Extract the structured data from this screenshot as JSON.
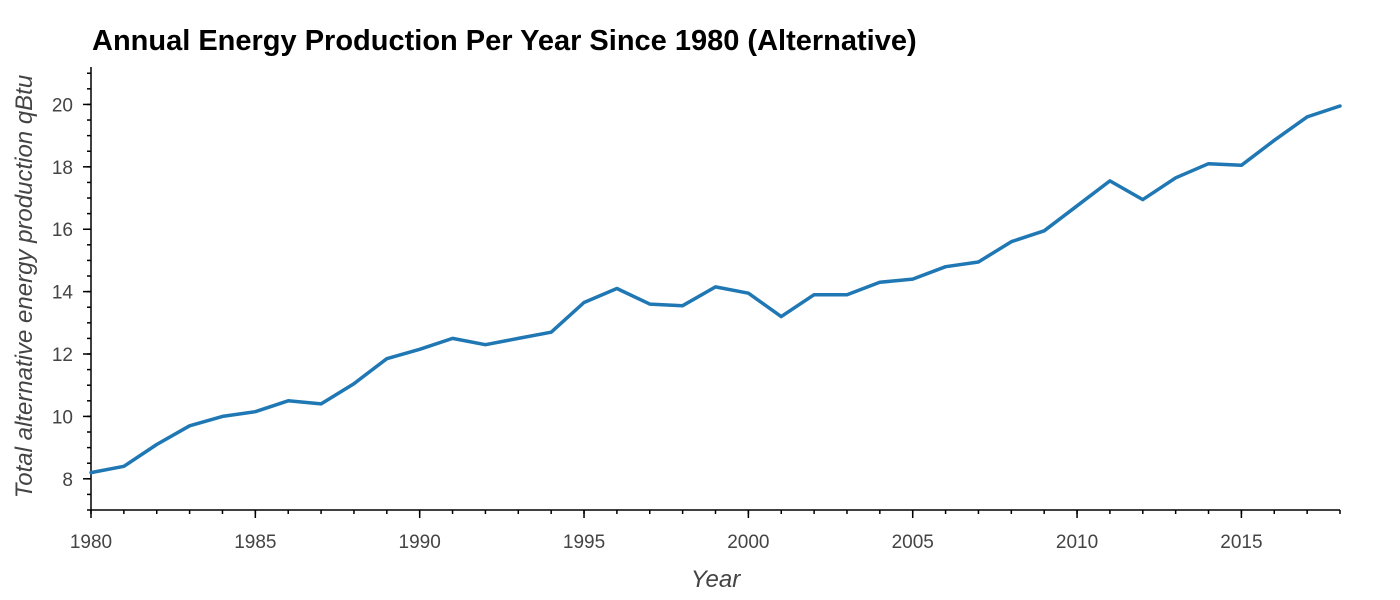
{
  "chart_data": {
    "type": "line",
    "title": "Annual Energy Production Per Year Since 1980 (Alternative)",
    "xlabel": "Year",
    "ylabel": "Total alternative energy production qBtu",
    "xlim": [
      1980,
      2018
    ],
    "ylim": [
      7,
      21.2
    ],
    "x_ticks": [
      1980,
      1985,
      1990,
      1995,
      2000,
      2005,
      2010,
      2015
    ],
    "y_ticks": [
      8,
      10,
      12,
      14,
      16,
      18,
      20
    ],
    "grid": false,
    "legend": "none",
    "series": [
      {
        "color": "#1f77b4",
        "x": [
          1980,
          1981,
          1982,
          1983,
          1984,
          1985,
          1986,
          1987,
          1988,
          1989,
          1990,
          1991,
          1992,
          1993,
          1994,
          1995,
          1996,
          1997,
          1998,
          1999,
          2000,
          2001,
          2002,
          2003,
          2004,
          2005,
          2006,
          2007,
          2008,
          2009,
          2010,
          2011,
          2012,
          2013,
          2014,
          2015,
          2016,
          2017,
          2018
        ],
        "values": [
          8.2,
          8.4,
          9.1,
          9.7,
          10.0,
          10.15,
          10.5,
          10.4,
          11.05,
          11.85,
          12.15,
          12.5,
          12.3,
          12.5,
          12.7,
          13.65,
          14.1,
          13.6,
          13.55,
          14.15,
          13.95,
          13.2,
          13.9,
          13.9,
          14.3,
          14.4,
          14.8,
          14.95,
          15.6,
          15.95,
          16.75,
          17.55,
          16.95,
          17.65,
          18.1,
          18.05,
          18.85,
          19.6,
          19.95
        ]
      }
    ]
  }
}
